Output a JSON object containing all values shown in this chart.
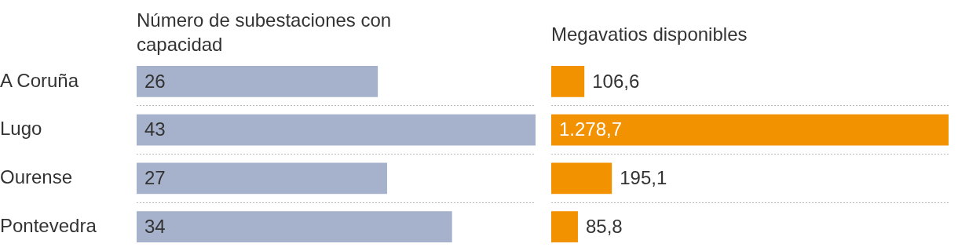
{
  "chart_data": [
    {
      "type": "bar",
      "orientation": "horizontal",
      "title": "Número de subestaciones con capacidad",
      "categories": [
        "A Coruña",
        "Lugo",
        "Ourense",
        "Pontevedra"
      ],
      "values": [
        26,
        43,
        27,
        34
      ],
      "color": "#a6b2cb",
      "data_labels": true,
      "grid": "y"
    },
    {
      "type": "bar",
      "orientation": "horizontal",
      "title": "Megavatios disponibles",
      "categories": [
        null,
        null,
        null,
        null
      ],
      "values": [
        106.6,
        1278.7,
        195.1,
        85.8
      ],
      "value_labels": [
        "106,6",
        "1.278,7",
        "195,1",
        "85,8"
      ],
      "color": "#f39200",
      "grid": "y"
    }
  ]
}
